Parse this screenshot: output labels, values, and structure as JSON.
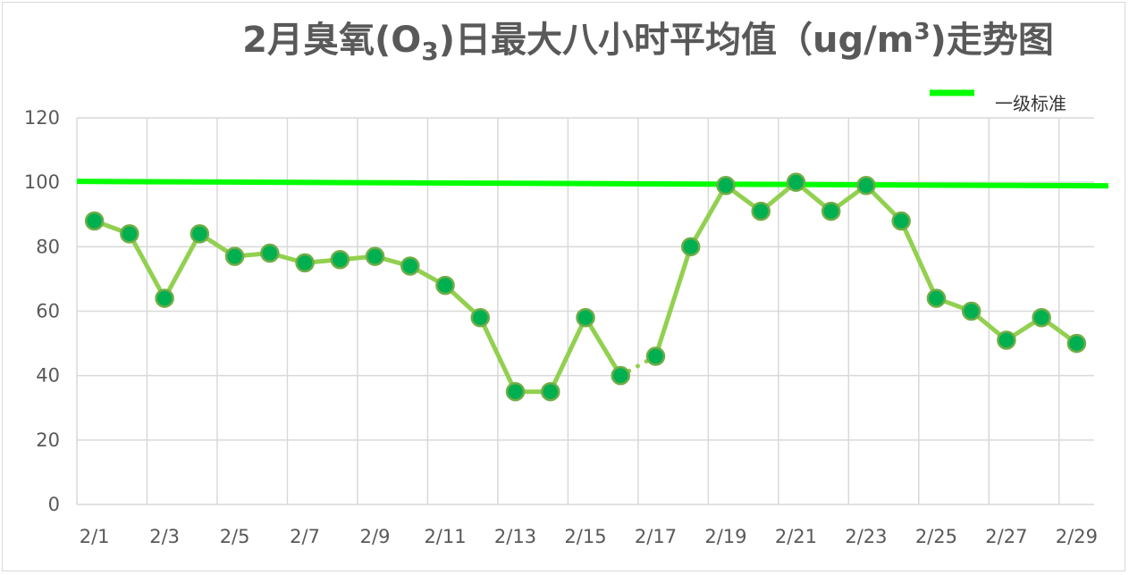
{
  "chart_data": {
    "type": "line",
    "title": {
      "prefix": "2月臭氧(O",
      "subscript": "3",
      "middle": ")日最大八小时平均值（ug/m",
      "superscript": "3",
      "suffix": ")走势图"
    },
    "xlabel": "",
    "ylabel": "",
    "ylim": [
      0,
      120
    ],
    "yticks": [
      0,
      20,
      40,
      60,
      80,
      100,
      120
    ],
    "categories": [
      "2/1",
      "2/2",
      "2/3",
      "2/4",
      "2/5",
      "2/6",
      "2/7",
      "2/8",
      "2/9",
      "2/10",
      "2/11",
      "2/12",
      "2/13",
      "2/14",
      "2/15",
      "2/16",
      "2/17",
      "2/18",
      "2/19",
      "2/20",
      "2/21",
      "2/22",
      "2/23",
      "2/24",
      "2/25",
      "2/26",
      "2/27",
      "2/28",
      "2/29"
    ],
    "xtick_labels": [
      "2/1",
      "",
      "2/3",
      "",
      "2/5",
      "",
      "2/7",
      "",
      "2/9",
      "",
      "2/11",
      "",
      "2/13",
      "",
      "2/15",
      "",
      "2/17",
      "",
      "2/19",
      "",
      "2/21",
      "",
      "2/23",
      "",
      "2/25",
      "",
      "2/27",
      "",
      "2/29"
    ],
    "series": [
      {
        "values": [
          88,
          84,
          64,
          84,
          77,
          78,
          75,
          76,
          77,
          74,
          68,
          58,
          35,
          35,
          58,
          40,
          46,
          80,
          99,
          91,
          100,
          91,
          99,
          88,
          64,
          60,
          51,
          58,
          50
        ],
        "gap_after_index": 15,
        "line_color": "#92d050",
        "marker_fill": "#00b050",
        "marker_stroke": "#70ad47"
      }
    ],
    "reference_line": {
      "name": "一级标准",
      "value": 100,
      "color": "#00ff00"
    },
    "legend": {
      "position": "top-right"
    },
    "grid": true,
    "colors": {
      "grid": "#d9d9d9",
      "text": "#595959",
      "title": "#595959"
    }
  }
}
